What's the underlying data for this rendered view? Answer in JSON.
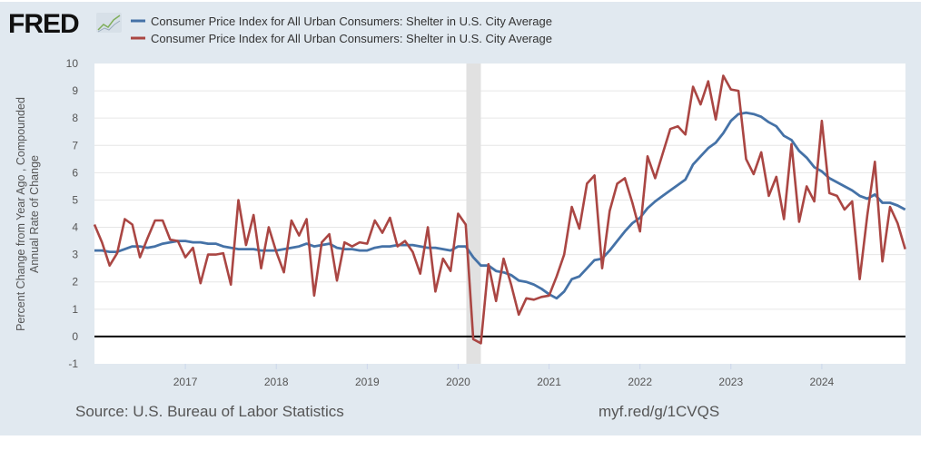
{
  "header": {
    "logo_text": "FRED"
  },
  "footer": {
    "source": "Source: U.S. Bureau of Labor Statistics",
    "short_url": "myf.red/g/1CVQS"
  },
  "chart_data": {
    "type": "line",
    "title": "",
    "ylabel_lines": [
      "Percent Change from Year Ago , Compounded",
      "Annual Rate of Change"
    ],
    "xlabel": "",
    "ylim": [
      -1,
      10
    ],
    "xlim": [
      2016.0,
      2024.92
    ],
    "yticks": [
      "-1",
      "0",
      "1",
      "2",
      "3",
      "4",
      "5",
      "6",
      "7",
      "8",
      "9",
      "10"
    ],
    "xticks": [
      {
        "label": "2017",
        "value": 2017
      },
      {
        "label": "2018",
        "value": 2018
      },
      {
        "label": "2019",
        "value": 2019
      },
      {
        "label": "2020",
        "value": 2020
      },
      {
        "label": "2021",
        "value": 2021
      },
      {
        "label": "2022",
        "value": 2022
      },
      {
        "label": "2023",
        "value": 2023
      },
      {
        "label": "2024",
        "value": 2024
      }
    ],
    "recession": [
      2020.09,
      2020.25
    ],
    "x_start": "2016-01",
    "frequency": "monthly",
    "grid": true,
    "legend_placement": "top",
    "series": [
      {
        "name": "Consumer Price Index for All Urban Consumers: Shelter in U.S. City Average",
        "color": "#4572a7",
        "values": [
          3.15,
          3.15,
          3.1,
          3.1,
          3.2,
          3.3,
          3.3,
          3.25,
          3.3,
          3.4,
          3.45,
          3.5,
          3.5,
          3.45,
          3.45,
          3.4,
          3.4,
          3.3,
          3.25,
          3.2,
          3.2,
          3.2,
          3.15,
          3.15,
          3.15,
          3.2,
          3.25,
          3.3,
          3.4,
          3.3,
          3.35,
          3.4,
          3.25,
          3.2,
          3.2,
          3.15,
          3.15,
          3.25,
          3.3,
          3.3,
          3.35,
          3.35,
          3.35,
          3.3,
          3.25,
          3.25,
          3.2,
          3.15,
          3.3,
          3.3,
          2.9,
          2.6,
          2.6,
          2.4,
          2.35,
          2.25,
          2.05,
          2.0,
          1.9,
          1.75,
          1.55,
          1.4,
          1.65,
          2.1,
          2.2,
          2.5,
          2.8,
          2.85,
          3.15,
          3.5,
          3.85,
          4.15,
          4.35,
          4.7,
          4.95,
          5.15,
          5.35,
          5.55,
          5.75,
          6.3,
          6.6,
          6.9,
          7.1,
          7.45,
          7.9,
          8.15,
          8.2,
          8.15,
          8.05,
          7.85,
          7.7,
          7.35,
          7.2,
          6.8,
          6.55,
          6.2,
          6.05,
          5.8,
          5.65,
          5.5,
          5.35,
          5.15,
          5.05,
          5.2,
          4.9,
          4.9,
          4.8,
          4.65
        ]
      },
      {
        "name": "Consumer Price Index for All Urban Consumers: Shelter in U.S. City Average",
        "color": "#aa4643",
        "values": [
          4.1,
          3.45,
          2.6,
          3.05,
          4.3,
          4.1,
          2.9,
          3.6,
          4.25,
          4.25,
          3.55,
          3.5,
          2.9,
          3.25,
          1.95,
          3.0,
          3.0,
          3.05,
          1.9,
          5.0,
          3.35,
          4.45,
          2.5,
          4.0,
          3.1,
          2.35,
          4.25,
          3.7,
          4.3,
          1.5,
          3.45,
          3.75,
          2.05,
          3.45,
          3.3,
          3.45,
          3.4,
          4.25,
          3.8,
          4.35,
          3.3,
          3.5,
          3.1,
          2.3,
          4.0,
          1.65,
          2.85,
          2.4,
          4.5,
          4.1,
          -0.1,
          -0.25,
          2.65,
          1.3,
          2.85,
          1.9,
          0.8,
          1.4,
          1.35,
          1.45,
          1.5,
          2.2,
          3.0,
          4.75,
          3.95,
          5.6,
          5.9,
          2.5,
          4.6,
          5.6,
          5.8,
          4.9,
          3.85,
          6.6,
          5.8,
          6.7,
          7.6,
          7.7,
          7.4,
          9.15,
          8.5,
          9.35,
          7.95,
          9.55,
          9.05,
          9.0,
          6.5,
          5.95,
          6.75,
          5.15,
          5.85,
          4.3,
          7.05,
          4.2,
          5.5,
          4.95,
          7.9,
          5.25,
          5.15,
          4.65,
          4.95,
          2.1,
          4.45,
          6.4,
          2.75,
          4.75,
          4.15,
          3.2
        ]
      }
    ]
  }
}
